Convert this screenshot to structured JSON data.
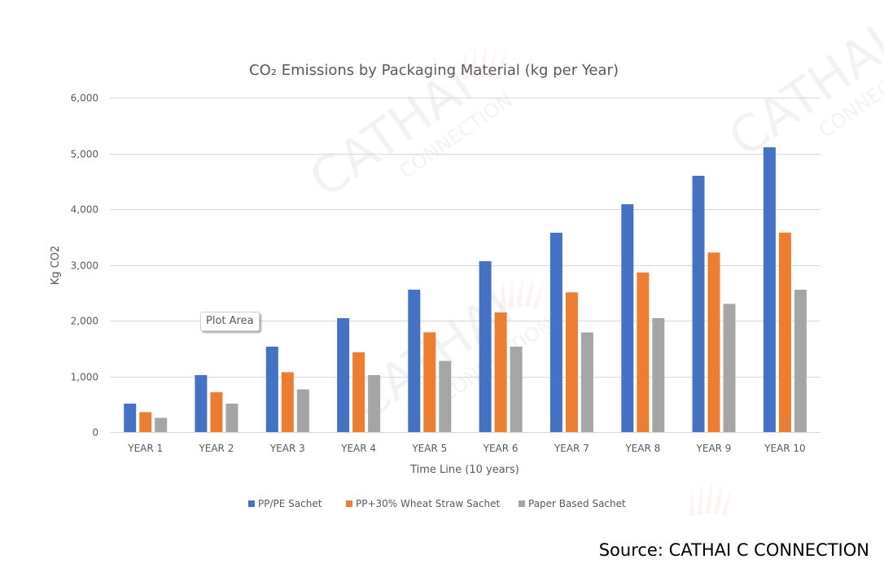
{
  "watermark": {
    "text_main": "CATHAI",
    "text_sub": "CONNECTION"
  },
  "tooltip": {
    "label": "Plot Area"
  },
  "source": {
    "text": "Source: CATHAI C CONNECTION"
  },
  "chart_data": {
    "type": "bar",
    "title": "CO₂ Emissions by Packaging Material (kg per Year)",
    "xlabel": "Time Line (10 years)",
    "ylabel": "Kg CO2",
    "ylim": [
      0,
      6000
    ],
    "yticks": [
      0,
      1000,
      2000,
      3000,
      4000,
      5000,
      6000
    ],
    "ytick_labels": [
      "0",
      "1,000",
      "2,000",
      "3,000",
      "4,000",
      "5,000",
      "6,000"
    ],
    "grid": true,
    "legend_position": "bottom",
    "categories": [
      "YEAR 1",
      "YEAR 2",
      "YEAR 3",
      "YEAR 4",
      "YEAR 5",
      "YEAR 6",
      "YEAR 7",
      "YEAR 8",
      "YEAR 9",
      "YEAR 10"
    ],
    "series": [
      {
        "name": "PP/PE Sachet",
        "color": "#4472C4",
        "values": [
          511,
          1022,
          1533,
          2044,
          2555,
          3066,
          3577,
          4088,
          4599,
          5110
        ]
      },
      {
        "name": "PP+30% Wheat Straw Sachet",
        "color": "#ED7D31",
        "values": [
          358,
          716,
          1074,
          1432,
          1790,
          2148,
          2506,
          2864,
          3222,
          3580
        ]
      },
      {
        "name": "Paper Based Sachet",
        "color": "#A5A5A5",
        "values": [
          256,
          511,
          767,
          1022,
          1278,
          1533,
          1789,
          2044,
          2300,
          2555
        ]
      }
    ]
  }
}
